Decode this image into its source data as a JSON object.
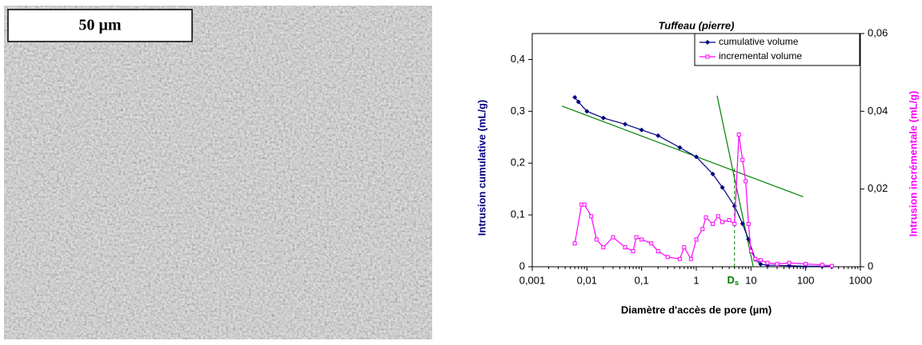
{
  "image_label": "50 µm",
  "chart_data": {
    "type": "line",
    "title": "Tuffeau (pierre)",
    "x_label": "Diamètre d'accès de pore (µm)",
    "y_label": "Intrusion cumulative (mL/g)",
    "y2_label": "Intrusion incrémentale (mL/g)",
    "x_log": true,
    "xlim": [
      0.001,
      1000
    ],
    "xticks": [
      {
        "value": 0.001,
        "label": "0,001"
      },
      {
        "value": 0.01,
        "label": "0,01"
      },
      {
        "value": 0.1,
        "label": "0,1"
      },
      1,
      10,
      100,
      1000
    ],
    "ylim": [
      0,
      0.45
    ],
    "yticks": [
      0,
      {
        "value": 0.1,
        "label": "0,1"
      },
      {
        "value": 0.2,
        "label": "0,2"
      },
      {
        "value": 0.3,
        "label": "0,3"
      },
      {
        "value": 0.4,
        "label": "0,4"
      }
    ],
    "y2lim": [
      0,
      0.06
    ],
    "y2ticks": [
      0,
      {
        "value": 0.02,
        "label": "0,02"
      },
      {
        "value": 0.04,
        "label": "0,04"
      },
      {
        "value": 0.06,
        "label": "0,06"
      }
    ],
    "legend": "upper right",
    "series": [
      {
        "name": "cumulative volume",
        "color": "#000080",
        "marker": "diamond",
        "x": [
          0.006,
          0.007,
          0.01,
          0.02,
          0.05,
          0.1,
          0.2,
          0.5,
          1,
          2,
          3,
          5,
          7,
          9,
          12,
          15,
          20,
          50,
          100,
          200,
          300
        ],
        "values": [
          0.327,
          0.318,
          0.3,
          0.287,
          0.275,
          0.264,
          0.253,
          0.23,
          0.212,
          0.179,
          0.153,
          0.117,
          0.083,
          0.053,
          0.014,
          0.005,
          0.003,
          0.002,
          0.001,
          0.001,
          0
        ]
      },
      {
        "name": "incremental volume",
        "color": "#ff00ff",
        "marker": "square",
        "axis": "y2",
        "x": [
          0.006,
          0.008,
          0.009,
          0.012,
          0.015,
          0.02,
          0.03,
          0.05,
          0.07,
          0.08,
          0.1,
          0.15,
          0.2,
          0.3,
          0.5,
          0.6,
          0.8,
          1,
          1.3,
          1.5,
          2,
          2.5,
          3,
          4,
          5,
          6,
          7,
          8,
          9,
          10,
          12,
          15,
          20,
          30,
          50,
          100,
          200,
          300
        ],
        "values": [
          0.006,
          0.016,
          0.016,
          0.013,
          0.007,
          0.005,
          0.0076,
          0.005,
          0.004,
          0.0076,
          0.007,
          0.006,
          0.004,
          0.0025,
          0.002,
          0.005,
          0.002,
          0.007,
          0.0097,
          0.0127,
          0.011,
          0.013,
          0.0115,
          0.012,
          0.011,
          0.034,
          0.0275,
          0.022,
          0.011,
          0.004,
          0.002,
          0.0017,
          0.001,
          0.0007,
          0.001,
          0.0007,
          0.0005,
          0.0002
        ]
      }
    ],
    "tangent_lines": [
      {
        "color": "#008000",
        "x": [
          0.0035,
          90
        ],
        "y": [
          0.31,
          0.135
        ]
      },
      {
        "color": "#008000",
        "x": [
          2.4,
          11
        ],
        "y": [
          0.33,
          0
        ]
      }
    ],
    "marker_line": {
      "x": 5,
      "y": 0.19,
      "color": "#008000",
      "text": "D",
      "subscript": "s"
    }
  }
}
